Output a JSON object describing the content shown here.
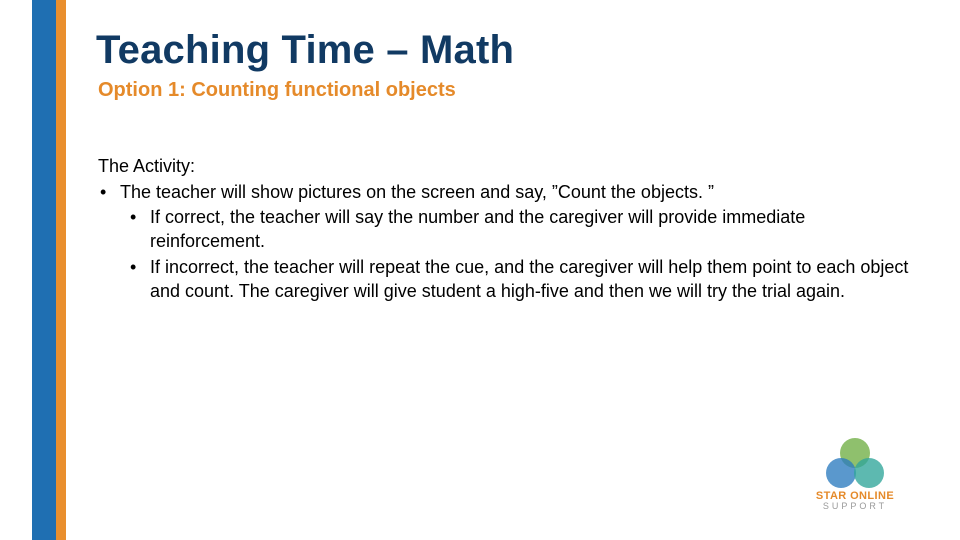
{
  "colors": {
    "stripe_blue": "#1f6fb2",
    "stripe_orange": "#e98f2e",
    "title": "#113a63",
    "subtitle": "#e58a2a",
    "body_text": "#000000",
    "logo_green": "#6fae44",
    "logo_blue": "#2b7bbf",
    "logo_teal": "#2fa59a",
    "logo_text_main": "#e58a2a",
    "logo_text_sub": "#9a9a9a"
  },
  "title": "Teaching Time – Math",
  "subtitle": "Option 1: Counting functional objects",
  "activity_label": "The Activity:",
  "bullet1": "The teacher will show pictures on the screen and say, ”Count the objects. ”",
  "sub1": "If correct, the teacher will say the number and the caregiver will provide immediate reinforcement.",
  "sub2": "If incorrect, the teacher will repeat the cue, and the caregiver will help them point to each object and count. The caregiver will give student a high-five and then we will try the trial again.",
  "logo": {
    "line1": "STAR ONLINE",
    "line2": "SUPPORT"
  },
  "typography": {
    "title_fontsize": 40,
    "subtitle_fontsize": 20,
    "body_fontsize": 18
  }
}
